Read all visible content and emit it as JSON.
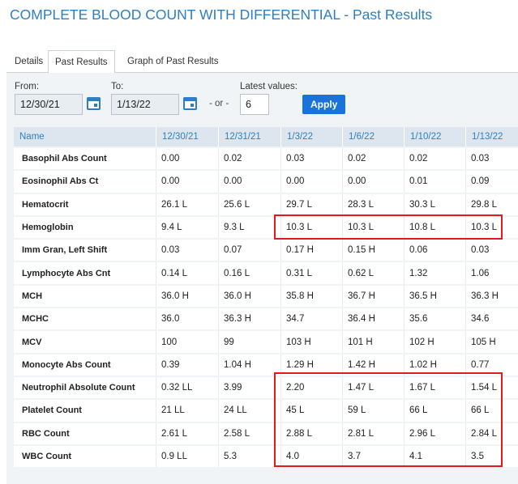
{
  "title": "COMPLETE BLOOD COUNT WITH DIFFERENTIAL - Past Results",
  "tabs": [
    {
      "label": "Details",
      "active": false
    },
    {
      "label": "Past Results",
      "active": true
    },
    {
      "label": "Graph of Past Results",
      "active": false
    }
  ],
  "filters": {
    "from_label": "From:",
    "from_value": "12/30/21",
    "to_label": "To:",
    "to_value": "1/13/22",
    "or_label": "- or -",
    "latest_label": "Latest values:",
    "latest_value": "6",
    "apply_label": "Apply"
  },
  "table": {
    "columns": [
      "Name",
      "12/30/21",
      "12/31/21",
      "1/3/22",
      "1/6/22",
      "1/10/22",
      "1/13/22"
    ],
    "rows": [
      {
        "name": "Basophil Abs Count",
        "values": [
          "0.00",
          "0.02",
          "0.03",
          "0.02",
          "0.02",
          "0.03"
        ]
      },
      {
        "name": "Eosinophil Abs Ct",
        "values": [
          "0.00",
          "0.00",
          "0.00",
          "0.00",
          "0.01",
          "0.09"
        ]
      },
      {
        "name": "Hematocrit",
        "values": [
          "26.1 L",
          "25.6 L",
          "29.7 L",
          "28.3 L",
          "30.3 L",
          "29.8 L"
        ]
      },
      {
        "name": "Hemoglobin",
        "values": [
          "9.4 L",
          "9.3 L",
          "10.3 L",
          "10.3 L",
          "10.8 L",
          "10.3 L"
        ]
      },
      {
        "name": "Imm Gran, Left Shift",
        "values": [
          "0.03",
          "0.07",
          "0.17 H",
          "0.15 H",
          "0.06",
          "0.03"
        ]
      },
      {
        "name": "Lymphocyte Abs Cnt",
        "values": [
          "0.14 L",
          "0.16 L",
          "0.31 L",
          "0.62 L",
          "1.32",
          "1.06"
        ]
      },
      {
        "name": "MCH",
        "values": [
          "36.0 H",
          "36.0 H",
          "35.8 H",
          "36.7 H",
          "36.5 H",
          "36.3 H"
        ]
      },
      {
        "name": "MCHC",
        "values": [
          "36.0",
          "36.3 H",
          "34.7",
          "36.4 H",
          "35.6",
          "34.6"
        ]
      },
      {
        "name": "MCV",
        "values": [
          "100",
          "99",
          "103 H",
          "101 H",
          "102 H",
          "105 H"
        ]
      },
      {
        "name": "Monocyte Abs Count",
        "values": [
          "0.39",
          "1.04 H",
          "1.29 H",
          "1.42 H",
          "1.02 H",
          "0.77"
        ]
      },
      {
        "name": "Neutrophil Absolute Count",
        "values": [
          "0.32 LL",
          "3.99",
          "2.20",
          "1.47 L",
          "1.67 L",
          "1.54 L"
        ]
      },
      {
        "name": "Platelet Count",
        "values": [
          "21 LL",
          "24 LL",
          "45 L",
          "59 L",
          "66 L",
          "66 L"
        ]
      },
      {
        "name": "RBC Count",
        "values": [
          "2.61 L",
          "2.58 L",
          "2.88 L",
          "2.81 L",
          "2.96 L",
          "2.84 L"
        ]
      },
      {
        "name": "WBC Count",
        "values": [
          "0.9 LL",
          "5.3",
          "4.0",
          "3.7",
          "4.1",
          "3.5"
        ]
      }
    ]
  },
  "highlight_color": "#e01b1b"
}
